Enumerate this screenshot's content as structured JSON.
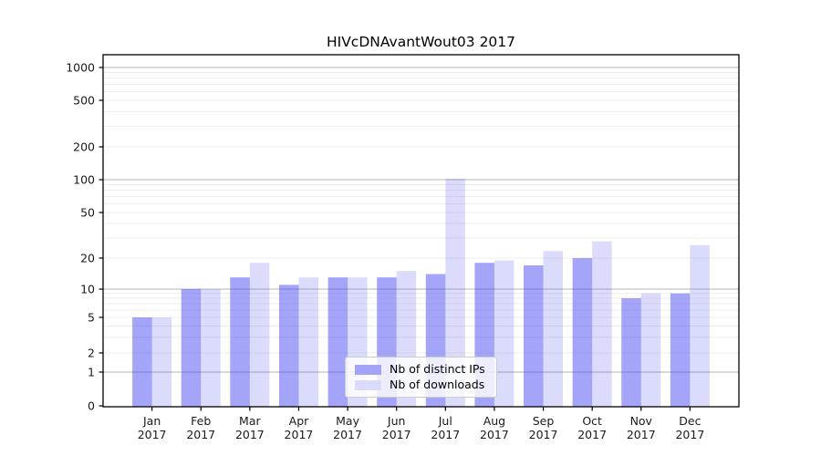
{
  "title": "HIVcDNAvantWout03 2017",
  "chart_data": {
    "type": "bar",
    "title": "HIVcDNAvantWout03 2017",
    "xlabel": "",
    "ylabel": "",
    "y_scale": "symlog",
    "ylim": [
      0,
      1300
    ],
    "grid": "on",
    "legend_position": "lower-center",
    "categories": [
      "Jan",
      "Feb",
      "Mar",
      "Apr",
      "May",
      "Jun",
      "Jul",
      "Aug",
      "Sep",
      "Oct",
      "Nov",
      "Dec"
    ],
    "x_year_label": "2017",
    "y_ticks": [
      0,
      1,
      2,
      5,
      10,
      20,
      50,
      100,
      200,
      500,
      1000
    ],
    "y_tick_labels": [
      "0",
      "1",
      "2",
      "5",
      "10",
      "20",
      "50",
      "100",
      "200",
      "500",
      "1000"
    ],
    "grid_major_values": [
      1,
      10,
      100,
      1000
    ],
    "grid_minor_values": [
      2,
      3,
      4,
      5,
      6,
      7,
      8,
      9,
      20,
      30,
      40,
      50,
      60,
      70,
      80,
      90,
      200,
      300,
      400,
      500,
      600,
      700,
      800,
      900
    ],
    "series": [
      {
        "name": "Nb of distinct IPs",
        "color": "#4040f0",
        "opacity": 0.48,
        "rendered_color": "#a3a3f3",
        "values": [
          5,
          10,
          13,
          11,
          13,
          13,
          14,
          18,
          17,
          20,
          8,
          9
        ]
      },
      {
        "name": "Nb of downloads",
        "color": "#4040f0",
        "opacity": 0.19,
        "rendered_color": "#d9d9f9",
        "values": [
          5,
          10,
          18,
          13,
          13,
          15,
          102,
          19,
          23,
          28,
          9,
          26
        ]
      }
    ],
    "colors": {
      "grid_major": "#c4c4c4",
      "grid_minor": "#ededed",
      "spine": "#000000",
      "text": "#1a1a1a",
      "legend_border": "#cccccc"
    }
  }
}
